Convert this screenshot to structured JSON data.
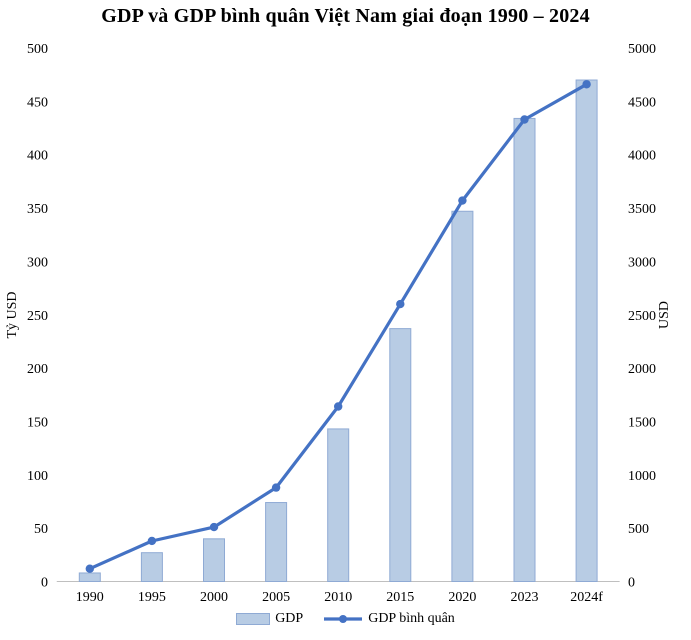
{
  "title": "GDP và GDP bình quân Việt Nam giai đoạn 1990 – 2024",
  "chart_data": {
    "type": "combo",
    "title": "GDP và GDP bình quân Việt Nam giai đoạn 1990 – 2024",
    "categories": [
      "1990",
      "1995",
      "2000",
      "2005",
      "2010",
      "2015",
      "2020",
      "2023",
      "2024f"
    ],
    "series": [
      {
        "name": "GDP",
        "type": "bar",
        "axis": "left",
        "color": "#B8CCE4",
        "border_color": "#8FAAD4",
        "values": [
          8,
          27,
          40,
          74,
          143,
          237,
          347,
          434,
          470
        ]
      },
      {
        "name": "GDP bình quân",
        "type": "line",
        "axis": "right",
        "color": "#4472C4",
        "values": [
          120,
          380,
          510,
          880,
          1640,
          2600,
          3570,
          4330,
          4660
        ]
      }
    ],
    "left_axis": {
      "label": "Tỷ USD",
      "min": 0,
      "max": 500,
      "step": 50
    },
    "right_axis": {
      "label": "USD",
      "min": 0,
      "max": 5000,
      "step": 500
    },
    "grid": false,
    "legend_position": "bottom",
    "axis_line_color": "#BFBFBF",
    "text_color": "#000000"
  }
}
